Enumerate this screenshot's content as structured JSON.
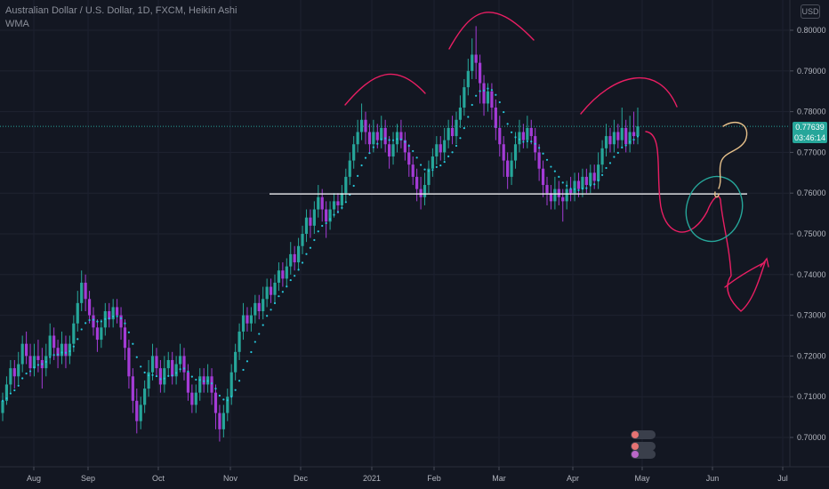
{
  "header": {
    "title": "Australian Dollar / U.S. Dollar, 1D, FXCM, Heikin Ashi",
    "indicator": "WMA",
    "currency": "USD"
  },
  "price_label": {
    "price": "0.77639",
    "countdown": "03:46:14"
  },
  "colors": {
    "up": "#26a69a",
    "down": "#a43bd6",
    "wma": "#26c6da",
    "drawing": "#e91e63",
    "support": "#ffffff",
    "ellipse": "#26a69a",
    "question": "#e6c08a"
  },
  "chart_data": {
    "type": "candlestick",
    "style": "Heikin Ashi",
    "timeframe": "1D",
    "symbol": "AUDUSD",
    "yaxis": {
      "ticks": [
        "0.80000",
        "0.79000",
        "0.78000",
        "0.77000",
        "0.76000",
        "0.75000",
        "0.74000",
        "0.73000",
        "0.72000",
        "0.71000",
        "0.70000"
      ],
      "range": [
        0.6935,
        0.8065
      ]
    },
    "xaxis": {
      "ticks": [
        "Aug",
        "Sep",
        "Oct",
        "Nov",
        "Dec",
        "2021",
        "Feb",
        "Mar",
        "Apr",
        "May",
        "Jun",
        "Jul"
      ]
    },
    "last_price": 0.77639,
    "support_level": 0.7598,
    "pattern": "head and shoulders",
    "series": [
      {
        "o": 0.706,
        "c": 0.709,
        "h": 0.711,
        "l": 0.704
      },
      {
        "o": 0.709,
        "c": 0.713,
        "h": 0.715,
        "l": 0.708
      },
      {
        "o": 0.713,
        "c": 0.717,
        "h": 0.719,
        "l": 0.711
      },
      {
        "o": 0.717,
        "c": 0.715,
        "h": 0.719,
        "l": 0.712
      },
      {
        "o": 0.715,
        "c": 0.718,
        "h": 0.721,
        "l": 0.713
      },
      {
        "o": 0.718,
        "c": 0.723,
        "h": 0.725,
        "l": 0.716
      },
      {
        "o": 0.723,
        "c": 0.72,
        "h": 0.726,
        "l": 0.718
      },
      {
        "o": 0.72,
        "c": 0.717,
        "h": 0.723,
        "l": 0.715
      },
      {
        "o": 0.717,
        "c": 0.72,
        "h": 0.723,
        "l": 0.715
      },
      {
        "o": 0.72,
        "c": 0.719,
        "h": 0.724,
        "l": 0.716
      },
      {
        "o": 0.719,
        "c": 0.717,
        "h": 0.722,
        "l": 0.712
      },
      {
        "o": 0.717,
        "c": 0.72,
        "h": 0.723,
        "l": 0.715
      },
      {
        "o": 0.72,
        "c": 0.725,
        "h": 0.728,
        "l": 0.718
      },
      {
        "o": 0.725,
        "c": 0.722,
        "h": 0.727,
        "l": 0.719
      },
      {
        "o": 0.722,
        "c": 0.72,
        "h": 0.724,
        "l": 0.717
      },
      {
        "o": 0.72,
        "c": 0.723,
        "h": 0.726,
        "l": 0.718
      },
      {
        "o": 0.723,
        "c": 0.72,
        "h": 0.725,
        "l": 0.717
      },
      {
        "o": 0.72,
        "c": 0.723,
        "h": 0.725,
        "l": 0.718
      },
      {
        "o": 0.723,
        "c": 0.728,
        "h": 0.73,
        "l": 0.721
      },
      {
        "o": 0.728,
        "c": 0.733,
        "h": 0.736,
        "l": 0.726
      },
      {
        "o": 0.733,
        "c": 0.738,
        "h": 0.741,
        "l": 0.731
      },
      {
        "o": 0.738,
        "c": 0.734,
        "h": 0.74,
        "l": 0.731
      },
      {
        "o": 0.734,
        "c": 0.73,
        "h": 0.736,
        "l": 0.728
      },
      {
        "o": 0.73,
        "c": 0.727,
        "h": 0.732,
        "l": 0.725
      },
      {
        "o": 0.727,
        "c": 0.724,
        "h": 0.729,
        "l": 0.721
      },
      {
        "o": 0.724,
        "c": 0.727,
        "h": 0.729,
        "l": 0.722
      },
      {
        "o": 0.727,
        "c": 0.731,
        "h": 0.733,
        "l": 0.725
      },
      {
        "o": 0.731,
        "c": 0.729,
        "h": 0.733,
        "l": 0.727
      },
      {
        "o": 0.729,
        "c": 0.732,
        "h": 0.734,
        "l": 0.727
      },
      {
        "o": 0.732,
        "c": 0.73,
        "h": 0.734,
        "l": 0.728
      },
      {
        "o": 0.73,
        "c": 0.727,
        "h": 0.732,
        "l": 0.724
      },
      {
        "o": 0.727,
        "c": 0.722,
        "h": 0.729,
        "l": 0.719
      },
      {
        "o": 0.722,
        "c": 0.715,
        "h": 0.724,
        "l": 0.712
      },
      {
        "o": 0.715,
        "c": 0.709,
        "h": 0.717,
        "l": 0.706
      },
      {
        "o": 0.709,
        "c": 0.704,
        "h": 0.712,
        "l": 0.701
      },
      {
        "o": 0.704,
        "c": 0.708,
        "h": 0.71,
        "l": 0.702
      },
      {
        "o": 0.708,
        "c": 0.712,
        "h": 0.714,
        "l": 0.706
      },
      {
        "o": 0.712,
        "c": 0.716,
        "h": 0.719,
        "l": 0.71
      },
      {
        "o": 0.716,
        "c": 0.72,
        "h": 0.723,
        "l": 0.714
      },
      {
        "o": 0.72,
        "c": 0.717,
        "h": 0.722,
        "l": 0.715
      },
      {
        "o": 0.717,
        "c": 0.713,
        "h": 0.719,
        "l": 0.711
      },
      {
        "o": 0.713,
        "c": 0.717,
        "h": 0.72,
        "l": 0.711
      },
      {
        "o": 0.717,
        "c": 0.719,
        "h": 0.721,
        "l": 0.715
      },
      {
        "o": 0.719,
        "c": 0.715,
        "h": 0.721,
        "l": 0.713
      },
      {
        "o": 0.715,
        "c": 0.718,
        "h": 0.72,
        "l": 0.713
      },
      {
        "o": 0.718,
        "c": 0.72,
        "h": 0.723,
        "l": 0.716
      },
      {
        "o": 0.72,
        "c": 0.716,
        "h": 0.722,
        "l": 0.714
      },
      {
        "o": 0.716,
        "c": 0.711,
        "h": 0.718,
        "l": 0.709
      },
      {
        "o": 0.711,
        "c": 0.708,
        "h": 0.713,
        "l": 0.706
      },
      {
        "o": 0.708,
        "c": 0.711,
        "h": 0.713,
        "l": 0.706
      },
      {
        "o": 0.711,
        "c": 0.715,
        "h": 0.717,
        "l": 0.709
      },
      {
        "o": 0.715,
        "c": 0.713,
        "h": 0.717,
        "l": 0.711
      },
      {
        "o": 0.713,
        "c": 0.715,
        "h": 0.718,
        "l": 0.711
      },
      {
        "o": 0.715,
        "c": 0.711,
        "h": 0.717,
        "l": 0.708
      },
      {
        "o": 0.711,
        "c": 0.706,
        "h": 0.713,
        "l": 0.702
      },
      {
        "o": 0.706,
        "c": 0.702,
        "h": 0.708,
        "l": 0.699
      },
      {
        "o": 0.702,
        "c": 0.706,
        "h": 0.708,
        "l": 0.7
      },
      {
        "o": 0.706,
        "c": 0.71,
        "h": 0.712,
        "l": 0.704
      },
      {
        "o": 0.71,
        "c": 0.716,
        "h": 0.718,
        "l": 0.708
      },
      {
        "o": 0.716,
        "c": 0.721,
        "h": 0.723,
        "l": 0.714
      },
      {
        "o": 0.721,
        "c": 0.726,
        "h": 0.728,
        "l": 0.719
      },
      {
        "o": 0.726,
        "c": 0.73,
        "h": 0.733,
        "l": 0.724
      },
      {
        "o": 0.73,
        "c": 0.728,
        "h": 0.732,
        "l": 0.726
      },
      {
        "o": 0.728,
        "c": 0.73,
        "h": 0.732,
        "l": 0.726
      },
      {
        "o": 0.73,
        "c": 0.733,
        "h": 0.735,
        "l": 0.728
      },
      {
        "o": 0.733,
        "c": 0.731,
        "h": 0.735,
        "l": 0.729
      },
      {
        "o": 0.731,
        "c": 0.734,
        "h": 0.737,
        "l": 0.729
      },
      {
        "o": 0.734,
        "c": 0.737,
        "h": 0.739,
        "l": 0.732
      },
      {
        "o": 0.737,
        "c": 0.735,
        "h": 0.739,
        "l": 0.733
      },
      {
        "o": 0.735,
        "c": 0.738,
        "h": 0.74,
        "l": 0.733
      },
      {
        "o": 0.738,
        "c": 0.741,
        "h": 0.743,
        "l": 0.736
      },
      {
        "o": 0.741,
        "c": 0.739,
        "h": 0.743,
        "l": 0.737
      },
      {
        "o": 0.739,
        "c": 0.742,
        "h": 0.744,
        "l": 0.737
      },
      {
        "o": 0.742,
        "c": 0.745,
        "h": 0.748,
        "l": 0.74
      },
      {
        "o": 0.745,
        "c": 0.743,
        "h": 0.747,
        "l": 0.741
      },
      {
        "o": 0.743,
        "c": 0.747,
        "h": 0.749,
        "l": 0.741
      },
      {
        "o": 0.747,
        "c": 0.75,
        "h": 0.752,
        "l": 0.745
      },
      {
        "o": 0.75,
        "c": 0.754,
        "h": 0.756,
        "l": 0.748
      },
      {
        "o": 0.754,
        "c": 0.752,
        "h": 0.756,
        "l": 0.749
      },
      {
        "o": 0.752,
        "c": 0.756,
        "h": 0.758,
        "l": 0.75
      },
      {
        "o": 0.756,
        "c": 0.759,
        "h": 0.762,
        "l": 0.754
      },
      {
        "o": 0.759,
        "c": 0.756,
        "h": 0.761,
        "l": 0.753
      },
      {
        "o": 0.756,
        "c": 0.753,
        "h": 0.758,
        "l": 0.749
      },
      {
        "o": 0.753,
        "c": 0.756,
        "h": 0.758,
        "l": 0.751
      },
      {
        "o": 0.756,
        "c": 0.758,
        "h": 0.76,
        "l": 0.754
      },
      {
        "o": 0.758,
        "c": 0.757,
        "h": 0.76,
        "l": 0.755
      },
      {
        "o": 0.757,
        "c": 0.76,
        "h": 0.762,
        "l": 0.756
      },
      {
        "o": 0.76,
        "c": 0.764,
        "h": 0.766,
        "l": 0.758
      },
      {
        "o": 0.764,
        "c": 0.768,
        "h": 0.77,
        "l": 0.762
      },
      {
        "o": 0.768,
        "c": 0.772,
        "h": 0.774,
        "l": 0.766
      },
      {
        "o": 0.772,
        "c": 0.775,
        "h": 0.778,
        "l": 0.77
      },
      {
        "o": 0.775,
        "c": 0.778,
        "h": 0.782,
        "l": 0.773
      },
      {
        "o": 0.778,
        "c": 0.775,
        "h": 0.78,
        "l": 0.772
      },
      {
        "o": 0.775,
        "c": 0.772,
        "h": 0.777,
        "l": 0.77
      },
      {
        "o": 0.772,
        "c": 0.775,
        "h": 0.778,
        "l": 0.77
      },
      {
        "o": 0.775,
        "c": 0.773,
        "h": 0.777,
        "l": 0.771
      },
      {
        "o": 0.773,
        "c": 0.776,
        "h": 0.779,
        "l": 0.771
      },
      {
        "o": 0.776,
        "c": 0.772,
        "h": 0.778,
        "l": 0.77
      },
      {
        "o": 0.772,
        "c": 0.769,
        "h": 0.774,
        "l": 0.766
      },
      {
        "o": 0.769,
        "c": 0.772,
        "h": 0.775,
        "l": 0.767
      },
      {
        "o": 0.772,
        "c": 0.775,
        "h": 0.777,
        "l": 0.77
      },
      {
        "o": 0.775,
        "c": 0.773,
        "h": 0.778,
        "l": 0.771
      },
      {
        "o": 0.773,
        "c": 0.77,
        "h": 0.775,
        "l": 0.768
      },
      {
        "o": 0.77,
        "c": 0.767,
        "h": 0.772,
        "l": 0.764
      },
      {
        "o": 0.767,
        "c": 0.764,
        "h": 0.769,
        "l": 0.762
      },
      {
        "o": 0.764,
        "c": 0.761,
        "h": 0.766,
        "l": 0.758
      },
      {
        "o": 0.761,
        "c": 0.759,
        "h": 0.764,
        "l": 0.756
      },
      {
        "o": 0.759,
        "c": 0.762,
        "h": 0.765,
        "l": 0.757
      },
      {
        "o": 0.762,
        "c": 0.766,
        "h": 0.768,
        "l": 0.76
      },
      {
        "o": 0.766,
        "c": 0.769,
        "h": 0.771,
        "l": 0.764
      },
      {
        "o": 0.769,
        "c": 0.772,
        "h": 0.774,
        "l": 0.767
      },
      {
        "o": 0.772,
        "c": 0.77,
        "h": 0.774,
        "l": 0.768
      },
      {
        "o": 0.77,
        "c": 0.773,
        "h": 0.776,
        "l": 0.768
      },
      {
        "o": 0.773,
        "c": 0.776,
        "h": 0.778,
        "l": 0.771
      },
      {
        "o": 0.776,
        "c": 0.774,
        "h": 0.779,
        "l": 0.772
      },
      {
        "o": 0.774,
        "c": 0.778,
        "h": 0.78,
        "l": 0.772
      },
      {
        "o": 0.778,
        "c": 0.781,
        "h": 0.784,
        "l": 0.776
      },
      {
        "o": 0.781,
        "c": 0.786,
        "h": 0.788,
        "l": 0.779
      },
      {
        "o": 0.786,
        "c": 0.79,
        "h": 0.793,
        "l": 0.784
      },
      {
        "o": 0.79,
        "c": 0.794,
        "h": 0.798,
        "l": 0.788
      },
      {
        "o": 0.794,
        "c": 0.792,
        "h": 0.801,
        "l": 0.788
      },
      {
        "o": 0.792,
        "c": 0.787,
        "h": 0.794,
        "l": 0.782
      },
      {
        "o": 0.787,
        "c": 0.782,
        "h": 0.789,
        "l": 0.779
      },
      {
        "o": 0.782,
        "c": 0.785,
        "h": 0.787,
        "l": 0.78
      },
      {
        "o": 0.785,
        "c": 0.781,
        "h": 0.787,
        "l": 0.778
      },
      {
        "o": 0.781,
        "c": 0.776,
        "h": 0.783,
        "l": 0.773
      },
      {
        "o": 0.776,
        "c": 0.772,
        "h": 0.779,
        "l": 0.769
      },
      {
        "o": 0.772,
        "c": 0.768,
        "h": 0.774,
        "l": 0.764
      },
      {
        "o": 0.768,
        "c": 0.764,
        "h": 0.77,
        "l": 0.761
      },
      {
        "o": 0.764,
        "c": 0.768,
        "h": 0.77,
        "l": 0.762
      },
      {
        "o": 0.768,
        "c": 0.772,
        "h": 0.775,
        "l": 0.766
      },
      {
        "o": 0.772,
        "c": 0.775,
        "h": 0.778,
        "l": 0.77
      },
      {
        "o": 0.775,
        "c": 0.773,
        "h": 0.777,
        "l": 0.771
      },
      {
        "o": 0.773,
        "c": 0.776,
        "h": 0.779,
        "l": 0.771
      },
      {
        "o": 0.776,
        "c": 0.774,
        "h": 0.778,
        "l": 0.772
      },
      {
        "o": 0.774,
        "c": 0.77,
        "h": 0.776,
        "l": 0.768
      },
      {
        "o": 0.77,
        "c": 0.766,
        "h": 0.772,
        "l": 0.763
      },
      {
        "o": 0.766,
        "c": 0.762,
        "h": 0.768,
        "l": 0.759
      },
      {
        "o": 0.762,
        "c": 0.76,
        "h": 0.764,
        "l": 0.757
      },
      {
        "o": 0.76,
        "c": 0.758,
        "h": 0.762,
        "l": 0.756
      },
      {
        "o": 0.758,
        "c": 0.761,
        "h": 0.764,
        "l": 0.756
      },
      {
        "o": 0.761,
        "c": 0.759,
        "h": 0.763,
        "l": 0.757
      },
      {
        "o": 0.759,
        "c": 0.758,
        "h": 0.761,
        "l": 0.753
      },
      {
        "o": 0.758,
        "c": 0.761,
        "h": 0.763,
        "l": 0.756
      },
      {
        "o": 0.761,
        "c": 0.76,
        "h": 0.764,
        "l": 0.758
      },
      {
        "o": 0.76,
        "c": 0.763,
        "h": 0.765,
        "l": 0.758
      },
      {
        "o": 0.763,
        "c": 0.761,
        "h": 0.765,
        "l": 0.759
      },
      {
        "o": 0.761,
        "c": 0.764,
        "h": 0.766,
        "l": 0.759
      },
      {
        "o": 0.764,
        "c": 0.762,
        "h": 0.766,
        "l": 0.76
      },
      {
        "o": 0.762,
        "c": 0.765,
        "h": 0.767,
        "l": 0.76
      },
      {
        "o": 0.765,
        "c": 0.763,
        "h": 0.767,
        "l": 0.761
      },
      {
        "o": 0.763,
        "c": 0.767,
        "h": 0.77,
        "l": 0.761
      },
      {
        "o": 0.767,
        "c": 0.771,
        "h": 0.773,
        "l": 0.765
      },
      {
        "o": 0.771,
        "c": 0.774,
        "h": 0.777,
        "l": 0.769
      },
      {
        "o": 0.774,
        "c": 0.772,
        "h": 0.776,
        "l": 0.77
      },
      {
        "o": 0.772,
        "c": 0.775,
        "h": 0.778,
        "l": 0.77
      },
      {
        "o": 0.775,
        "c": 0.773,
        "h": 0.777,
        "l": 0.771
      },
      {
        "o": 0.773,
        "c": 0.776,
        "h": 0.781,
        "l": 0.771
      },
      {
        "o": 0.776,
        "c": 0.772,
        "h": 0.778,
        "l": 0.77
      },
      {
        "o": 0.772,
        "c": 0.775,
        "h": 0.779,
        "l": 0.77
      },
      {
        "o": 0.775,
        "c": 0.774,
        "h": 0.78,
        "l": 0.772
      },
      {
        "o": 0.774,
        "c": 0.7764,
        "h": 0.781,
        "l": 0.772
      }
    ]
  }
}
